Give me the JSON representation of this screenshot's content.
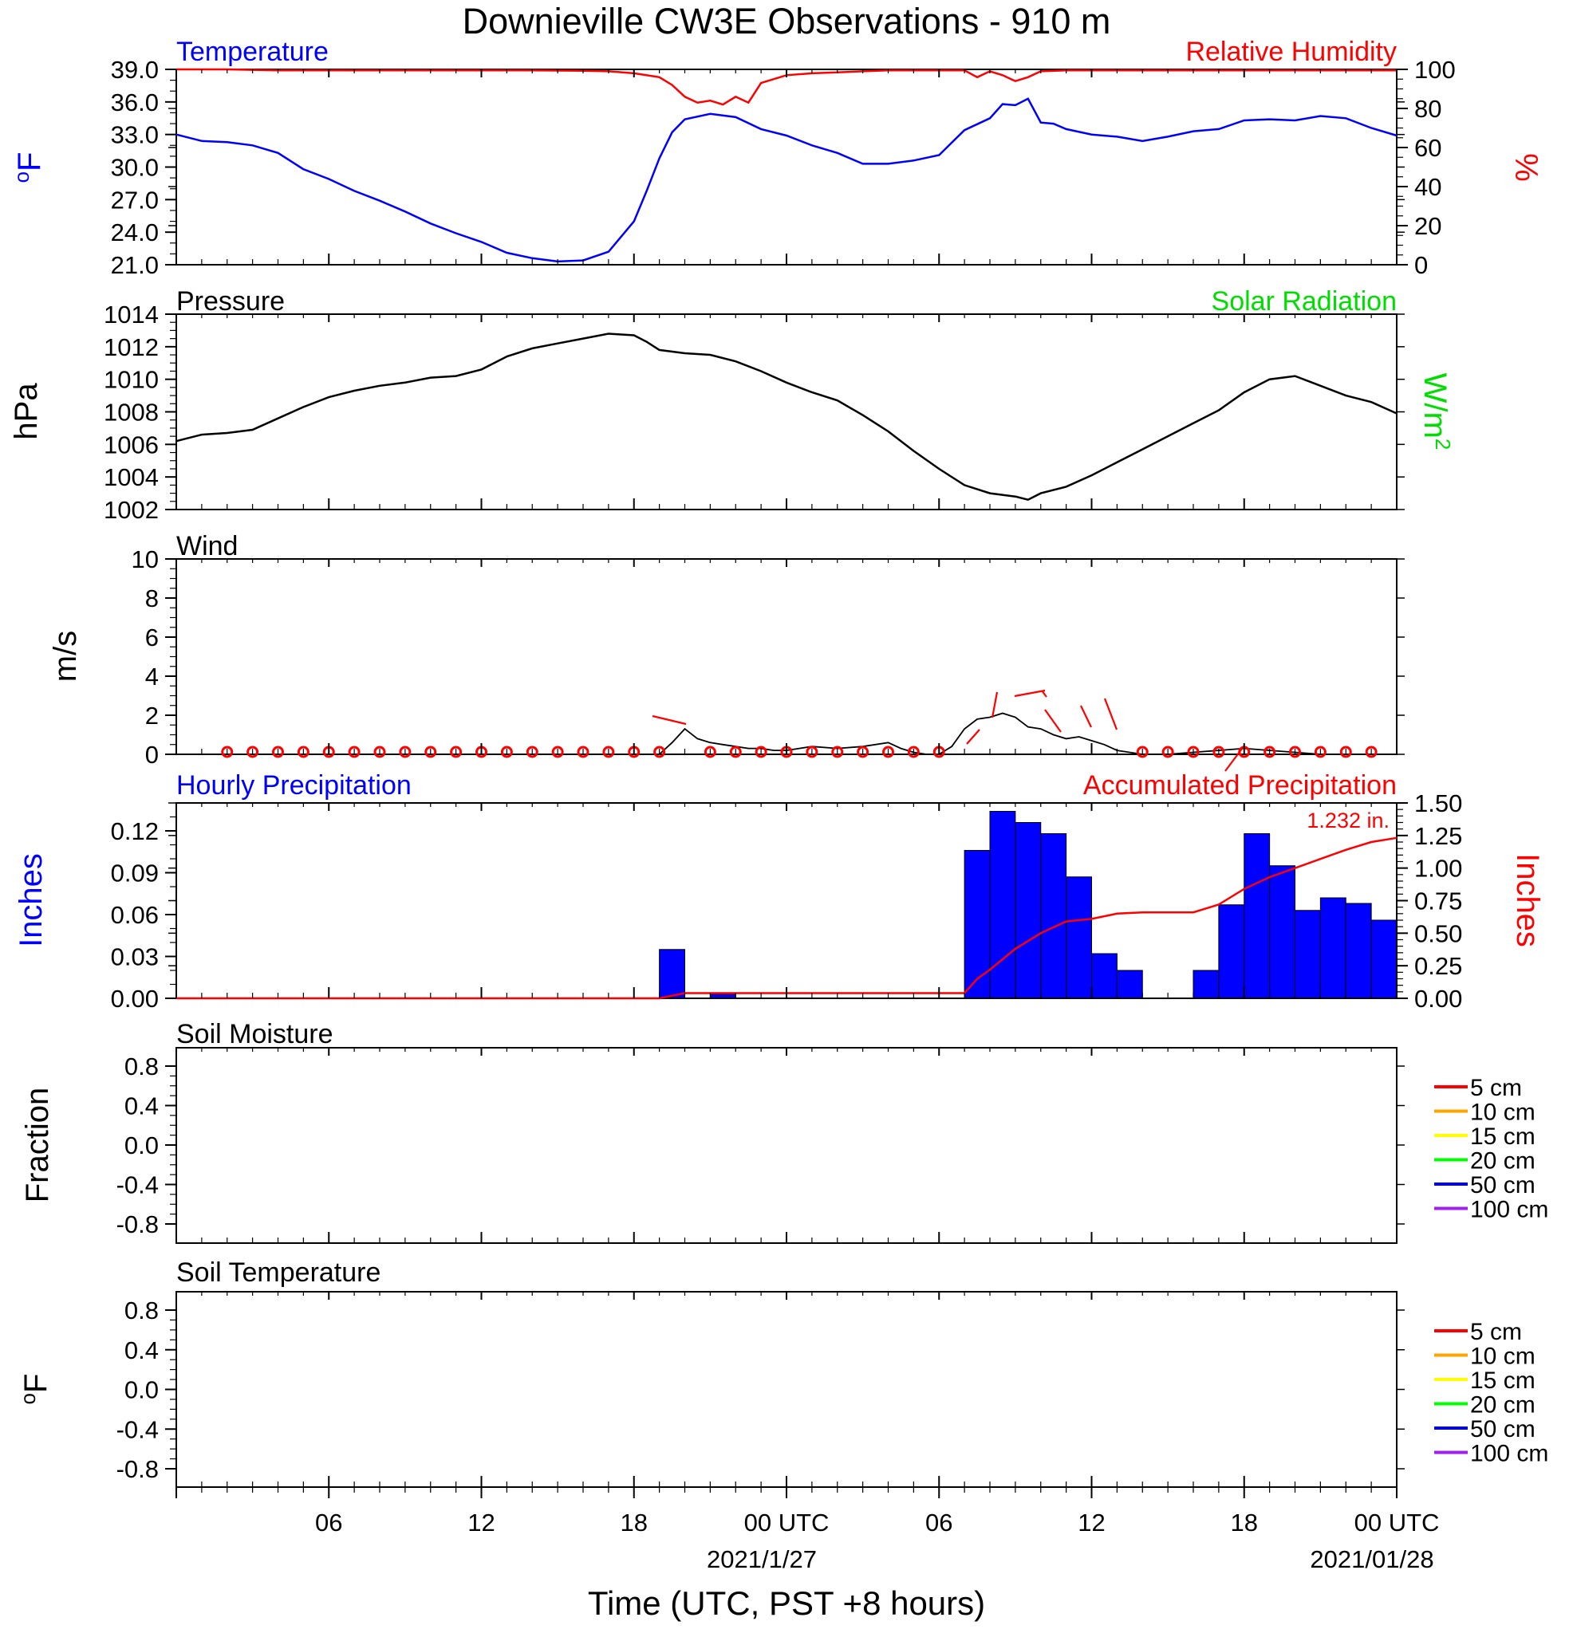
{
  "title": "Downieville CW3E Observations - 910 m",
  "xaxis": {
    "title": "Time (UTC, PST +8 hours)",
    "tick_labels": [
      "06",
      "12",
      "18",
      "00 UTC",
      "06",
      "12",
      "18",
      "00 UTC"
    ],
    "date_labels": [
      "2021/1/27",
      "2021/01/28"
    ],
    "range_hours": [
      0,
      48
    ]
  },
  "colors": {
    "temperature": "#0000ff",
    "humidity": "#ff0000",
    "pressure": "#000000",
    "solar": "#00ff00",
    "wind": "#000000",
    "wind_barb": "#ff0000",
    "precip_bar": "#0000ff",
    "accum_line": "#ff0000"
  },
  "panels": {
    "temp": {
      "title_left": "Temperature",
      "title_right": "Relative Humidity",
      "ylabel_left": "oF",
      "ylabel_right": "%",
      "left_ticks": [
        "21.0",
        "24.0",
        "27.0",
        "30.0",
        "33.0",
        "36.0",
        "39.0"
      ],
      "right_ticks": [
        "0",
        "20",
        "40",
        "60",
        "80",
        "100"
      ]
    },
    "pressure": {
      "title_left": "Pressure",
      "title_right": "Solar Radiation",
      "ylabel_left": "hPa",
      "ylabel_right": "W/m2",
      "left_ticks": [
        "1002",
        "1004",
        "1006",
        "1008",
        "1010",
        "1012",
        "1014"
      ]
    },
    "wind": {
      "title_left": "Wind",
      "ylabel_left": "m/s",
      "left_ticks": [
        "0",
        "2",
        "4",
        "6",
        "8",
        "10"
      ]
    },
    "precip": {
      "title_left": "Hourly Precipitation",
      "title_right": "Accumulated Precipitation",
      "ylabel_left": "Inches",
      "ylabel_right": "Inches",
      "total_label": "1.232 in.",
      "left_ticks": [
        "0.00",
        "0.03",
        "0.06",
        "0.09",
        "0.12"
      ],
      "right_ticks": [
        "0.00",
        "0.25",
        "0.50",
        "0.75",
        "1.00",
        "1.25",
        "1.50"
      ]
    },
    "soil_moisture": {
      "title_left": "Soil Moisture",
      "ylabel_left": "Fraction",
      "left_ticks": [
        "-0.8",
        "-0.4",
        "0.0",
        "0.4",
        "0.8"
      ]
    },
    "soil_temperature": {
      "title_left": "Soil Temperature",
      "ylabel_left": "oF",
      "left_ticks": [
        "-0.8",
        "-0.4",
        "0.0",
        "0.4",
        "0.8"
      ]
    }
  },
  "soil_legend": [
    {
      "label": "5 cm",
      "color": "#ff0000"
    },
    {
      "label": "10 cm",
      "color": "#ffa500"
    },
    {
      "label": "15 cm",
      "color": "#ffff00"
    },
    {
      "label": "20 cm",
      "color": "#00ff00"
    },
    {
      "label": "50 cm",
      "color": "#0000ff"
    },
    {
      "label": "100 cm",
      "color": "#a020f0"
    }
  ],
  "chart_data": [
    {
      "type": "line",
      "panel": "temperature / relative humidity",
      "x_unit": "hours since 2021-01-26 00 UTC",
      "ylim_left": [
        21,
        39
      ],
      "ylim_right": [
        0,
        100
      ],
      "series": [
        {
          "name": "Temperature",
          "axis": "left",
          "x": [
            0,
            1,
            2,
            3,
            4,
            5,
            6,
            7,
            8,
            9,
            10,
            11,
            12,
            13,
            14,
            15,
            16,
            17,
            18,
            18.5,
            19,
            19.5,
            20,
            21,
            22,
            23,
            24,
            25,
            26,
            27,
            28,
            29,
            30,
            31,
            32,
            32.5,
            33,
            33.5,
            34,
            34.5,
            35,
            36,
            37,
            38,
            39,
            40,
            41,
            42,
            43,
            44,
            45,
            46,
            47,
            48
          ],
          "y": [
            33.0,
            32.4,
            32.3,
            32.0,
            31.3,
            29.8,
            28.9,
            27.8,
            26.9,
            25.9,
            24.8,
            23.9,
            23.1,
            22.1,
            21.6,
            21.3,
            21.4,
            22.2,
            25.0,
            27.8,
            30.8,
            33.2,
            34.4,
            34.9,
            34.6,
            33.5,
            32.9,
            32.0,
            31.3,
            30.3,
            30.3,
            30.6,
            31.1,
            33.4,
            34.5,
            35.8,
            35.7,
            36.3,
            34.1,
            34.0,
            33.5,
            33.0,
            32.8,
            32.4,
            32.8,
            33.3,
            33.5,
            34.3,
            34.4,
            34.3,
            34.7,
            34.5,
            33.6,
            32.9
          ]
        },
        {
          "name": "Relative Humidity",
          "axis": "right",
          "x": [
            0,
            2,
            4,
            6,
            8,
            10,
            12,
            14,
            16,
            17,
            18,
            19,
            19.5,
            20,
            20.5,
            21,
            21.5,
            22,
            22.5,
            23,
            24,
            25,
            26,
            27,
            28,
            29,
            30,
            31,
            31.5,
            32,
            32.5,
            33,
            33.5,
            34,
            35,
            36,
            38,
            40,
            42,
            44,
            46,
            48
          ],
          "y": [
            100,
            100,
            99.5,
            99.5,
            99.5,
            99.5,
            99.5,
            99.5,
            99.3,
            99,
            98,
            96,
            92,
            86,
            83,
            84,
            82,
            86,
            83,
            93,
            97,
            98,
            98.5,
            99,
            99.5,
            99.5,
            99.5,
            99.5,
            96,
            99,
            97,
            94,
            96,
            99,
            99.5,
            99.5,
            99.5,
            99.5,
            99.5,
            99.5,
            99.5,
            99.5
          ]
        }
      ]
    },
    {
      "type": "line",
      "panel": "pressure / solar radiation",
      "ylim": [
        1002,
        1014
      ],
      "series": [
        {
          "name": "Pressure",
          "x": [
            0,
            1,
            2,
            3,
            4,
            5,
            6,
            7,
            8,
            9,
            10,
            11,
            12,
            13,
            14,
            15,
            16,
            17,
            18,
            18.5,
            19,
            20,
            21,
            22,
            23,
            24,
            25,
            26,
            27,
            28,
            29,
            30,
            31,
            32,
            33,
            33.5,
            34,
            35,
            36,
            37,
            38,
            39,
            40,
            41,
            42,
            43,
            44,
            45,
            46,
            47,
            48
          ],
          "y": [
            1006.2,
            1006.6,
            1006.7,
            1006.9,
            1007.6,
            1008.3,
            1008.9,
            1009.3,
            1009.6,
            1009.8,
            1010.1,
            1010.2,
            1010.6,
            1011.4,
            1011.9,
            1012.2,
            1012.5,
            1012.8,
            1012.7,
            1012.3,
            1011.8,
            1011.6,
            1011.5,
            1011.1,
            1010.5,
            1009.8,
            1009.2,
            1008.7,
            1007.8,
            1006.8,
            1005.6,
            1004.5,
            1003.5,
            1003.0,
            1002.8,
            1002.6,
            1003.0,
            1003.4,
            1004.1,
            1004.9,
            1005.7,
            1006.5,
            1007.3,
            1008.1,
            1009.2,
            1010.0,
            1010.2,
            1009.6,
            1009.0,
            1008.6,
            1007.9
          ]
        }
      ]
    },
    {
      "type": "line",
      "panel": "wind",
      "ylim": [
        0,
        10
      ],
      "series": [
        {
          "name": "Wind",
          "x": [
            0,
            19,
            19.5,
            20,
            20.5,
            21,
            21.5,
            22,
            22.5,
            23,
            23.5,
            24,
            25,
            26,
            27,
            28,
            28.5,
            29,
            29.5,
            30,
            30.5,
            31,
            31.5,
            32,
            32.5,
            33,
            33.5,
            34,
            34.5,
            35,
            35.5,
            36,
            36.5,
            37,
            38,
            39,
            40,
            41,
            42,
            43,
            44,
            45,
            46,
            47,
            48
          ],
          "y": [
            0,
            0,
            0.6,
            1.3,
            0.8,
            0.6,
            0.5,
            0.4,
            0.3,
            0.3,
            0.2,
            0.2,
            0.4,
            0.3,
            0.4,
            0.6,
            0.3,
            0.1,
            0,
            0,
            0.4,
            1.3,
            1.8,
            1.9,
            2.1,
            1.9,
            1.4,
            1.3,
            1.0,
            0.8,
            0.9,
            0.7,
            0.5,
            0.2,
            0,
            0,
            0.1,
            0.2,
            0.3,
            0.2,
            0.1,
            0,
            0,
            0,
            0
          ]
        }
      ],
      "calm_marker_hours": [
        2,
        3,
        4,
        5,
        6,
        7,
        8,
        9,
        10,
        11,
        12,
        13,
        14,
        15,
        16,
        17,
        18,
        19,
        21,
        22,
        23,
        24,
        25,
        26,
        27,
        28,
        29,
        30,
        38,
        39,
        40,
        41,
        42,
        43,
        44,
        45,
        46,
        47
      ]
    },
    {
      "type": "bar",
      "panel": "hourly precipitation",
      "ylim_left": [
        0,
        0.14
      ],
      "ylim_right": [
        0,
        1.5
      ],
      "bar_start_hours": [
        19,
        21,
        31,
        32,
        33,
        34,
        35,
        36,
        37,
        38,
        40,
        41,
        42,
        43,
        44,
        45,
        46,
        47
      ],
      "values": [
        0.035,
        0.003,
        0.106,
        0.134,
        0.126,
        0.118,
        0.087,
        0.032,
        0.02,
        0.0,
        0.02,
        0.067,
        0.118,
        0.095,
        0.063,
        0.072,
        0.068,
        0.056
      ],
      "series": [
        {
          "name": "Accumulated Precipitation",
          "x": [
            0,
            19,
            20,
            21,
            22,
            31,
            31.5,
            32,
            33,
            34,
            35,
            36,
            37,
            38,
            39,
            40,
            41,
            42,
            43,
            44,
            45,
            46,
            47,
            48
          ],
          "y": [
            0,
            0,
            0.04,
            0.04,
            0.04,
            0.04,
            0.15,
            0.22,
            0.38,
            0.5,
            0.59,
            0.61,
            0.65,
            0.66,
            0.66,
            0.66,
            0.72,
            0.84,
            0.93,
            1.0,
            1.07,
            1.14,
            1.2,
            1.232
          ]
        }
      ]
    }
  ]
}
